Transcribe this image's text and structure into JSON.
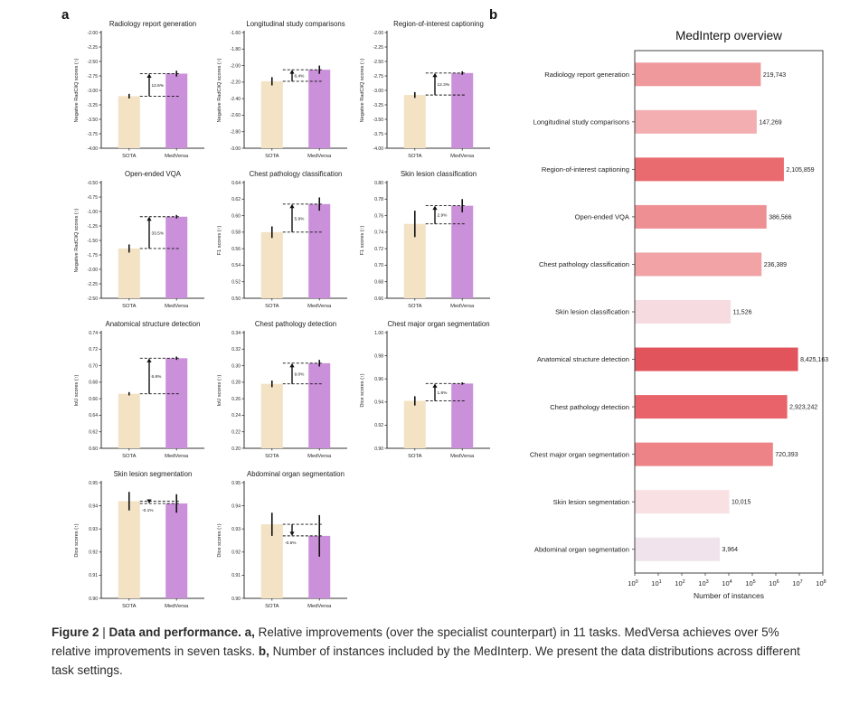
{
  "panel_a_label": "a",
  "panel_b_label": "b",
  "colors": {
    "sota_bar": "#f3e2c4",
    "medversa_bar": "#ca90d9",
    "axis": "#333333",
    "annotation": "#111111",
    "panel_b_border": "#444444"
  },
  "caption": [
    {
      "text": "Figure 2 ",
      "bold": true
    },
    {
      "text": "| ",
      "bold": false
    },
    {
      "text": "Data and performance. a, ",
      "bold": true
    },
    {
      "text": "Relative improvements (over the specialist counterpart) in 11 tasks. MedVersa achieves over 5% relative improvements in seven tasks. ",
      "bold": false
    },
    {
      "text": "b, ",
      "bold": true
    },
    {
      "text": "Number of instances included by the MedInterp. We present the data distributions across different task settings.",
      "bold": false
    }
  ],
  "chart_data": [
    {
      "panel": "a",
      "type": "bar",
      "title": "Radiology report generation",
      "ylabel": "Negative RadCliQ scores (↑)",
      "categories": [
        "SOTA",
        "MedVersa"
      ],
      "values": [
        -3.1,
        -2.71
      ],
      "errors": [
        0.04,
        0.05
      ],
      "improvement": "12.6%",
      "ylim": [
        -4.0,
        -2.0
      ],
      "ytick_step": 0.25
    },
    {
      "panel": "a",
      "type": "bar",
      "title": "Longitudinal study comparisons",
      "ylabel": "Negative RadCliQ scores (↑)",
      "categories": [
        "SOTA",
        "MedVersa"
      ],
      "values": [
        -2.19,
        -2.05
      ],
      "errors": [
        0.05,
        0.05
      ],
      "improvement": "6.4%",
      "ylim": [
        -3.0,
        -1.6
      ],
      "ytick_step": 0.2
    },
    {
      "panel": "a",
      "type": "bar",
      "title": "Region-of-interest captioning",
      "ylabel": "Negative RadCliQ scores (↑)",
      "categories": [
        "SOTA",
        "MedVersa"
      ],
      "values": [
        -3.08,
        -2.7
      ],
      "errors": [
        0.05,
        0.03
      ],
      "improvement": "12.3%",
      "ylim": [
        -4.0,
        -2.0
      ],
      "ytick_step": 0.25
    },
    {
      "panel": "a",
      "type": "bar",
      "title": "Open-ended VQA",
      "ylabel": "Negative RadCliQ scores (↑)",
      "categories": [
        "SOTA",
        "MedVersa"
      ],
      "values": [
        -1.64,
        -1.09
      ],
      "errors": [
        0.07,
        0.03
      ],
      "improvement": "33.5%",
      "ylim": [
        -2.5,
        -0.5
      ],
      "ytick_step": 0.25
    },
    {
      "panel": "a",
      "type": "bar",
      "title": "Chest pathology classification",
      "ylabel": "F1 scores (↑)",
      "categories": [
        "SOTA",
        "MedVersa"
      ],
      "values": [
        0.58,
        0.614
      ],
      "errors": [
        0.007,
        0.008
      ],
      "improvement": "5.9%",
      "ylim": [
        0.5,
        0.64
      ],
      "ytick_step": 0.02
    },
    {
      "panel": "a",
      "type": "bar",
      "title": "Skin lesion classification",
      "ylabel": "F1 scores (↑)",
      "categories": [
        "SOTA",
        "MedVersa"
      ],
      "values": [
        0.75,
        0.772
      ],
      "errors": [
        0.016,
        0.008
      ],
      "improvement": "2.9%",
      "ylim": [
        0.66,
        0.8
      ],
      "ytick_step": 0.02
    },
    {
      "panel": "a",
      "type": "bar",
      "title": "Anatomical structure detection",
      "ylabel": "IoU scores (↑)",
      "categories": [
        "SOTA",
        "MedVersa"
      ],
      "values": [
        0.666,
        0.709
      ],
      "errors": [
        0.002,
        0.002
      ],
      "improvement": "6.6%",
      "ylim": [
        0.6,
        0.74
      ],
      "ytick_step": 0.02
    },
    {
      "panel": "a",
      "type": "bar",
      "title": "Chest pathology detection",
      "ylabel": "IoU scores (↑)",
      "categories": [
        "SOTA",
        "MedVersa"
      ],
      "values": [
        0.278,
        0.303
      ],
      "errors": [
        0.004,
        0.004
      ],
      "improvement": "9.0%",
      "ylim": [
        0.2,
        0.34
      ],
      "ytick_step": 0.02
    },
    {
      "panel": "a",
      "type": "bar",
      "title": "Chest major organ segmentation",
      "ylabel": "Dice scores (↑)",
      "categories": [
        "SOTA",
        "MedVersa"
      ],
      "values": [
        0.941,
        0.956
      ],
      "errors": [
        0.004,
        0.001
      ],
      "improvement": "1.6%",
      "ylim": [
        0.9,
        1.0
      ],
      "ytick_step": 0.02
    },
    {
      "panel": "a",
      "type": "bar",
      "title": "Skin lesion segmentation",
      "ylabel": "Dice scores (↑)",
      "categories": [
        "SOTA",
        "MedVersa"
      ],
      "values": [
        0.942,
        0.941
      ],
      "errors": [
        0.004,
        0.004
      ],
      "improvement": "-0.1%",
      "ylim": [
        0.9,
        0.95
      ],
      "ytick_step": 0.01
    },
    {
      "panel": "a",
      "type": "bar",
      "title": "Abdominal organ segmentation",
      "ylabel": "Dice scores (↑)",
      "categories": [
        "SOTA",
        "MedVersa"
      ],
      "values": [
        0.932,
        0.927
      ],
      "errors": [
        0.005,
        0.009
      ],
      "improvement": "-0.5%",
      "ylim": [
        0.9,
        0.95
      ],
      "ytick_step": 0.01
    },
    {
      "panel": "b",
      "type": "bar",
      "title": "MedInterp overview",
      "xlabel": "Number of instances",
      "xscale": "log",
      "xlim_exp": [
        0,
        8
      ],
      "categories": [
        "Radiology report generation",
        "Longitudinal study comparisons",
        "Region-of-interest captioning",
        "Open-ended VQA",
        "Chest pathology classification",
        "Skin lesion classification",
        "Anatomical structure detection",
        "Chest pathology detection",
        "Chest major organ segmentation",
        "Skin lesion segmentation",
        "Abdominal organ segmentation"
      ],
      "values": [
        219743,
        147269,
        2105859,
        386566,
        236389,
        11526,
        8425163,
        2923242,
        720393,
        10015,
        3964
      ],
      "value_labels": [
        "219,743",
        "147,269",
        "2,105,859",
        "386,566",
        "236,389",
        "11,526",
        "8,425,163",
        "2,923,242",
        "720,393",
        "10,015",
        "3,964"
      ],
      "bar_colors": [
        "#f0999c",
        "#f3aeb1",
        "#e96a6f",
        "#ee9093",
        "#f1a3a6",
        "#f6dce0",
        "#e2545b",
        "#e8646a",
        "#ee8387",
        "#f8e0e3",
        "#f0e3ec"
      ]
    }
  ]
}
